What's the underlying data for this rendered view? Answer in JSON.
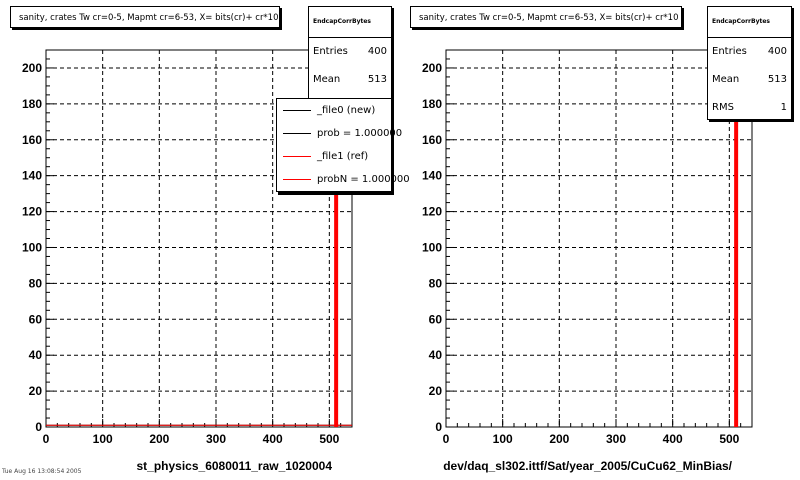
{
  "charts": [
    {
      "title": "sanity, crates Tw cr=0-5, Mapmt cr=6-53,  X= bits(cr)+ cr*10",
      "stats": {
        "name": "EndcapCorrBytes",
        "entries_label": "Entries",
        "entries": "400",
        "mean_label": "Mean",
        "mean": "513"
      },
      "legend": [
        {
          "label": "_file0 (new)",
          "color": "#000000"
        },
        {
          "label": "prob = 1.000000",
          "color": "#000000"
        },
        {
          "label": "_file1 (ref)",
          "color": "#ff0000"
        },
        {
          "label": "probN = 1.000000",
          "color": "#ff0000"
        }
      ],
      "xlabel": "st_physics_6080011_raw_1020004"
    },
    {
      "title": "sanity, crates Tw cr=0-5, Mapmt cr=6-53,  X= bits(cr)+ cr*10",
      "stats": {
        "name": "EndcapCorrBytes",
        "entries_label": "Entries",
        "entries": "400",
        "mean_label": "Mean",
        "mean": "513",
        "rms_label": "RMS",
        "rms": "1"
      },
      "xlabel": "dev/daq_sl302.ittf/Sat/year_2005/CuCu62_MinBias/"
    }
  ],
  "footer_text": "Tue Aug 16 13:08:54 2005",
  "chart_data": [
    {
      "type": "bar",
      "title": "sanity, crates Tw cr=0-5, Mapmt cr=6-53,  X= bits(cr)+ cr*10",
      "xlabel": "st_physics_6080011_raw_1020004",
      "ylabel": "",
      "xlim": [
        0,
        540
      ],
      "ylim": [
        0,
        210
      ],
      "xticks": [
        0,
        100,
        200,
        300,
        400,
        500
      ],
      "yticks": [
        0,
        20,
        40,
        60,
        80,
        100,
        120,
        140,
        160,
        180,
        200
      ],
      "grid": true,
      "legend_position": "top-right",
      "series": [
        {
          "name": "_file0 (new)",
          "color": "#000000",
          "x": [
            0,
            512
          ],
          "values": [
            1,
            200
          ]
        },
        {
          "name": "_file1 (ref)",
          "color": "#ff0000",
          "x": [
            0,
            512
          ],
          "values": [
            1,
            200
          ]
        }
      ],
      "stats": {
        "entries": 400,
        "mean": 513
      }
    },
    {
      "type": "bar",
      "title": "sanity, crates Tw cr=0-5, Mapmt cr=6-53,  X= bits(cr)+ cr*10",
      "xlabel": "dev/daq_sl302.ittf/Sat/year_2005/CuCu62_MinBias/",
      "ylabel": "",
      "xlim": [
        0,
        540
      ],
      "ylim": [
        0,
        210
      ],
      "xticks": [
        0,
        100,
        200,
        300,
        400,
        500
      ],
      "yticks": [
        0,
        20,
        40,
        60,
        80,
        100,
        120,
        140,
        160,
        180,
        200
      ],
      "grid": true,
      "series": [
        {
          "color": "#ff0000",
          "x": [
            512
          ],
          "values": [
            200
          ]
        }
      ],
      "stats": {
        "entries": 400,
        "mean": 513,
        "rms": 1
      }
    }
  ]
}
